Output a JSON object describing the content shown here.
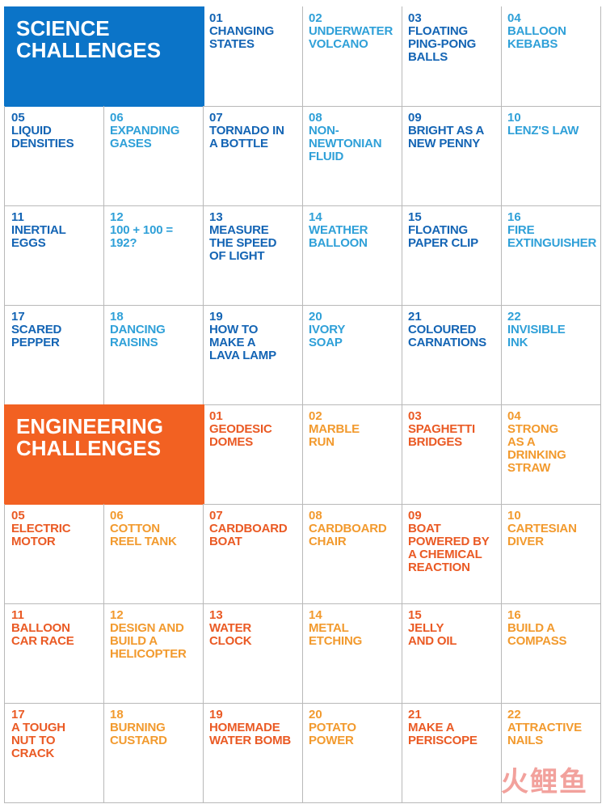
{
  "colors": {
    "science_header": "#0b74c8",
    "engineering_header": "#f26122",
    "science_dark": "#1364b4",
    "science_light": "#2fa0d8",
    "engineering_dark": "#ea5a24",
    "engineering_light": "#f29a2e"
  },
  "science": {
    "title": "SCIENCE\nCHALLENGES",
    "items": [
      {
        "num": "01",
        "label": "Changing\nstates"
      },
      {
        "num": "02",
        "label": "Underwater\nvolcano"
      },
      {
        "num": "03",
        "label": "Floating\nping-pong\nballs"
      },
      {
        "num": "04",
        "label": "Balloon\nkebabs"
      },
      {
        "num": "05",
        "label": "Liquid\ndensities"
      },
      {
        "num": "06",
        "label": "Expanding\ngases"
      },
      {
        "num": "07",
        "label": "Tornado in\na bottle"
      },
      {
        "num": "08",
        "label": "Non-\nNewtonian\nfluid"
      },
      {
        "num": "09",
        "label": "Bright as a\nnew penny"
      },
      {
        "num": "10",
        "label": "Lenz's law"
      },
      {
        "num": "11",
        "label": "Inertial\neggs"
      },
      {
        "num": "12",
        "label": "100 + 100 =\n192?"
      },
      {
        "num": "13",
        "label": "Measure\nthe speed\nof light"
      },
      {
        "num": "14",
        "label": "Weather\nballoon"
      },
      {
        "num": "15",
        "label": "Floating\npaper clip"
      },
      {
        "num": "16",
        "label": "Fire\nextinguisher"
      },
      {
        "num": "17",
        "label": "Scared\npepper"
      },
      {
        "num": "18",
        "label": "Dancing\nraisins"
      },
      {
        "num": "19",
        "label": "How to\nmake a\nlava lamp"
      },
      {
        "num": "20",
        "label": "Ivory\nsoap"
      },
      {
        "num": "21",
        "label": "Coloured\ncarnations"
      },
      {
        "num": "22",
        "label": "Invisible\nink"
      }
    ]
  },
  "engineering": {
    "title": "ENGINEERING\nCHALLENGES",
    "items": [
      {
        "num": "01",
        "label": "Geodesic\ndomes"
      },
      {
        "num": "02",
        "label": "Marble\nrun"
      },
      {
        "num": "03",
        "label": "Spaghetti\nbridges"
      },
      {
        "num": "04",
        "label": "Strong\nas a\ndrinking\nstraw"
      },
      {
        "num": "05",
        "label": "Electric\nmotor"
      },
      {
        "num": "06",
        "label": "Cotton\nreel tank"
      },
      {
        "num": "07",
        "label": "Cardboard\nboat"
      },
      {
        "num": "08",
        "label": "Cardboard\nchair"
      },
      {
        "num": "09",
        "label": "Boat\npowered by\na chemical\nreaction"
      },
      {
        "num": "10",
        "label": "Cartesian\ndiver"
      },
      {
        "num": "11",
        "label": "Balloon\ncar race"
      },
      {
        "num": "12",
        "label": "Design and\nbuild a\nhelicopter"
      },
      {
        "num": "13",
        "label": "Water\nclock"
      },
      {
        "num": "14",
        "label": "Metal\netching"
      },
      {
        "num": "15",
        "label": "Jelly\nand oil"
      },
      {
        "num": "16",
        "label": "Build a\ncompass"
      },
      {
        "num": "17",
        "label": "A tough\nnut to\ncrack"
      },
      {
        "num": "18",
        "label": "Burning\ncustard"
      },
      {
        "num": "19",
        "label": "Homemade\nwater bomb"
      },
      {
        "num": "20",
        "label": "Potato\npower"
      },
      {
        "num": "21",
        "label": "Make a\nperiscope"
      },
      {
        "num": "22",
        "label": "Attractive\nnails"
      }
    ]
  },
  "watermark": "火鲤鱼"
}
